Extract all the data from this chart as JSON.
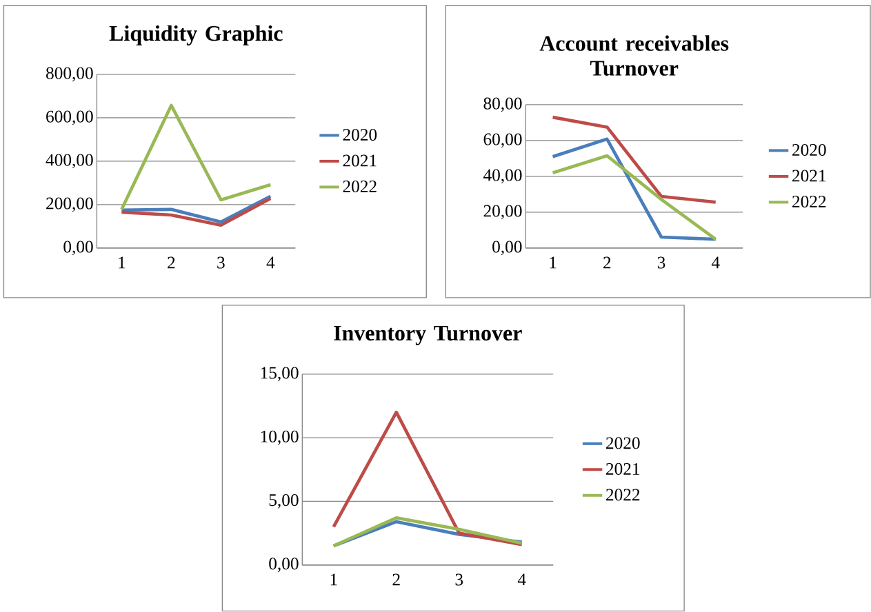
{
  "chart_data": [
    {
      "type": "line",
      "title": "Liquidity Graphic",
      "categories": [
        "1",
        "2",
        "3",
        "4"
      ],
      "series": [
        {
          "name": "2020",
          "color": "#4a7ebb",
          "values": [
            175,
            178,
            120,
            238
          ]
        },
        {
          "name": "2021",
          "color": "#be4b48",
          "values": [
            165,
            152,
            105,
            228
          ]
        },
        {
          "name": "2022",
          "color": "#98b954",
          "values": [
            178,
            657,
            222,
            292
          ]
        }
      ],
      "ylim": [
        0,
        800
      ],
      "yticks": [
        {
          "value": 0,
          "label": "0,00"
        },
        {
          "value": 200,
          "label": "200,00"
        },
        {
          "value": 400,
          "label": "400,00"
        },
        {
          "value": 600,
          "label": "600,00"
        },
        {
          "value": 800,
          "label": "800,00"
        }
      ],
      "grid": "y",
      "legend": "right"
    },
    {
      "type": "line",
      "title": "Account receivables Turnover",
      "categories": [
        "1",
        "2",
        "3",
        "4"
      ],
      "series": [
        {
          "name": "2020",
          "color": "#4a7ebb",
          "values": [
            51,
            60.8,
            6.1,
            4.9
          ]
        },
        {
          "name": "2021",
          "color": "#be4b48",
          "values": [
            73,
            67.5,
            28.8,
            25.6
          ]
        },
        {
          "name": "2022",
          "color": "#98b954",
          "values": [
            42,
            51.5,
            27.1,
            4.9
          ]
        }
      ],
      "ylim": [
        0,
        80
      ],
      "yticks": [
        {
          "value": 0,
          "label": "0,00"
        },
        {
          "value": 20,
          "label": "20,00"
        },
        {
          "value": 40,
          "label": "40,00"
        },
        {
          "value": 60,
          "label": "60,00"
        },
        {
          "value": 80,
          "label": "80,00"
        }
      ],
      "grid": "y",
      "legend": "right"
    },
    {
      "type": "line",
      "title": "Inventory Turnover",
      "categories": [
        "1",
        "2",
        "3",
        "4"
      ],
      "series": [
        {
          "name": "2020",
          "color": "#4a7ebb",
          "values": [
            1.5,
            3.4,
            2.4,
            1.8
          ]
        },
        {
          "name": "2021",
          "color": "#be4b48",
          "values": [
            3.0,
            12.0,
            2.5,
            1.6
          ]
        },
        {
          "name": "2022",
          "color": "#98b954",
          "values": [
            1.5,
            3.7,
            2.8,
            1.7
          ]
        }
      ],
      "ylim": [
        0,
        15
      ],
      "yticks": [
        {
          "value": 0,
          "label": "0,00"
        },
        {
          "value": 5,
          "label": "5,00"
        },
        {
          "value": 10,
          "label": "10,00"
        },
        {
          "value": 15,
          "label": "15,00"
        }
      ],
      "grid": "y",
      "legend": "right"
    }
  ]
}
